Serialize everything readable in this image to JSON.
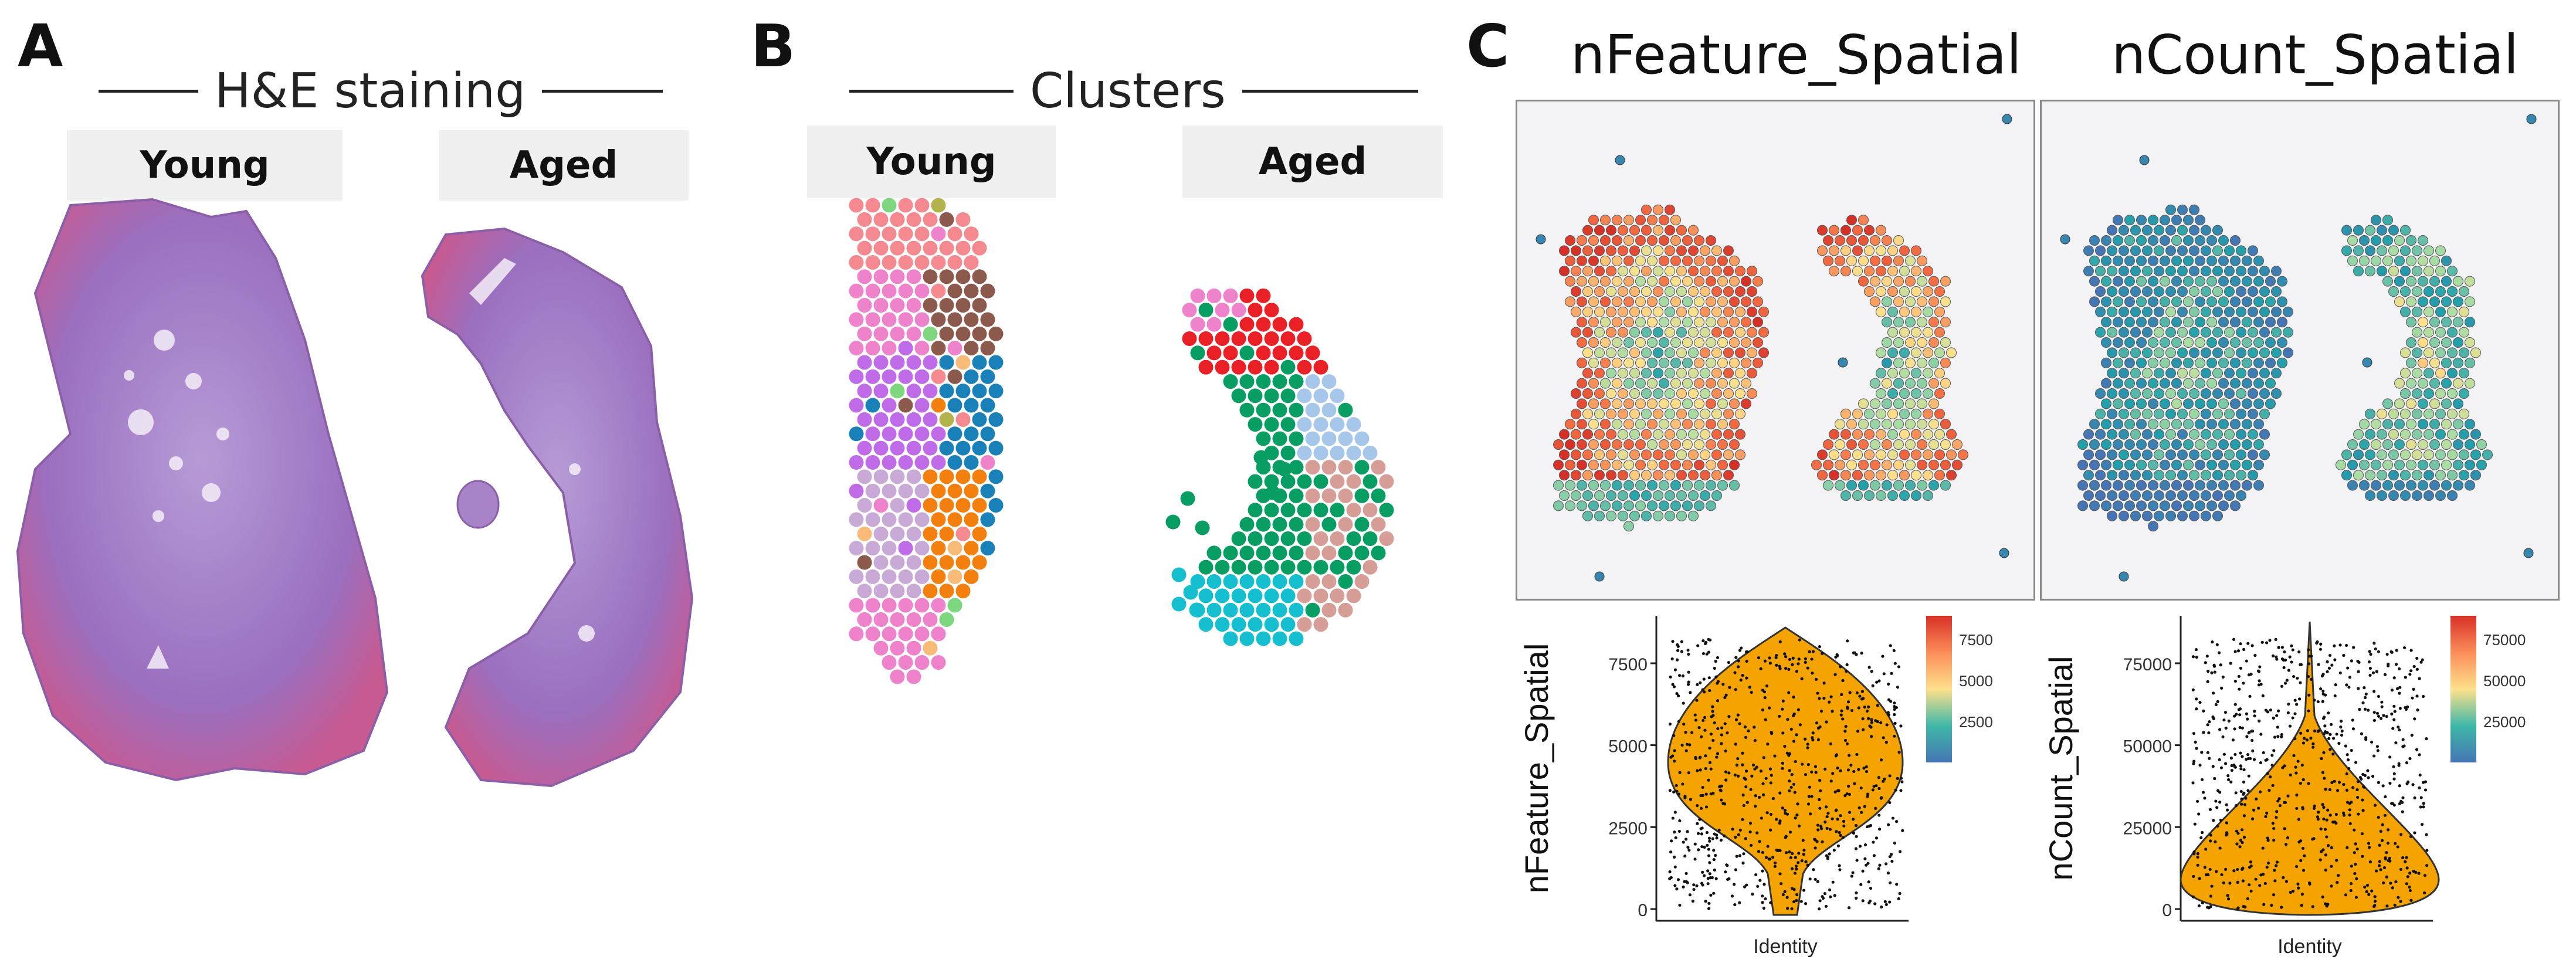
{
  "panels": {
    "A": {
      "label": "A",
      "title": "H&E staining",
      "groups": [
        "Young",
        "Aged"
      ]
    },
    "B": {
      "label": "B",
      "title": "Clusters",
      "groups": [
        "Young",
        "Aged"
      ]
    },
    "C": {
      "label": "C",
      "maps": [
        "nFeature_Spatial",
        "nCount_Spatial"
      ],
      "violins": [
        {
          "metric": "nFeature_Spatial",
          "ylabel": "nFeature_Spatial",
          "xlabel": "Identity",
          "yticks": [
            "0",
            "2500",
            "5000",
            "7500"
          ],
          "colorbar_ticks": [
            "7500",
            "5000",
            "2500"
          ]
        },
        {
          "metric": "nCount_Spatial",
          "ylabel": "nCount_Spatial",
          "xlabel": "Identity",
          "yticks": [
            "0",
            "25000",
            "50000",
            "75000"
          ],
          "colorbar_ticks": [
            "75000",
            "50000",
            "25000"
          ]
        }
      ]
    }
  },
  "colors": {
    "he_tissue": "#9a6fbf",
    "he_edge": "#c9568f",
    "violin_fill": "#f5a300",
    "clusters": [
      "#f4898f",
      "#f9bb78",
      "#7ed67e",
      "#c06ce8",
      "#8c5a4c",
      "#1a80b8",
      "#f27f0e",
      "#b3b34d",
      "#ee82cb",
      "#a7c7ea",
      "#ea2027",
      "#089e63",
      "#d79e97",
      "#16bfcf",
      "#c9a9d6"
    ]
  }
}
